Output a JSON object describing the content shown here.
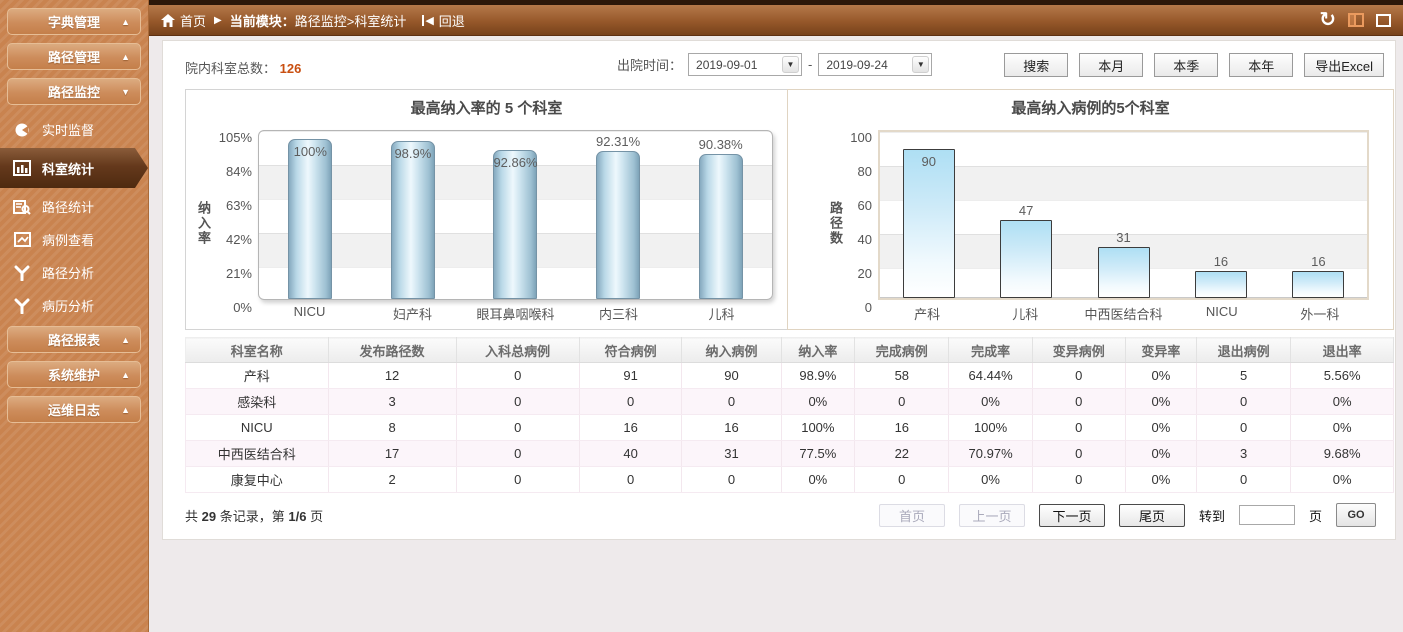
{
  "topbar": {
    "home_label": "首页",
    "module_label": "当前模块：",
    "module_path": "路径监控>科室统计",
    "back_label": "回退"
  },
  "sidebar": {
    "groups_top": [
      {
        "label": "字典管理",
        "arrow": "▲"
      },
      {
        "label": "路径管理",
        "arrow": "▲"
      }
    ],
    "monitor_group": {
      "label": "路径监控",
      "arrow": "▼"
    },
    "monitor_items": [
      {
        "label": "实时监督"
      },
      {
        "label": "科室统计"
      },
      {
        "label": "路径统计"
      },
      {
        "label": "病例查看"
      },
      {
        "label": "路径分析"
      },
      {
        "label": "病历分析"
      }
    ],
    "groups_bottom": [
      {
        "label": "路径报表",
        "arrow": "▲"
      },
      {
        "label": "系统维护",
        "arrow": "▲"
      },
      {
        "label": "运维日志",
        "arrow": "▲"
      }
    ]
  },
  "filter": {
    "total_label": "院内科室总数：",
    "total_value": "126",
    "date_label": "出院时间：",
    "date_from": "2019-09-01",
    "date_to": "2019-09-24",
    "date_separator": "-",
    "buttons": [
      "搜索",
      "本月",
      "本季",
      "本年",
      "导出Excel"
    ]
  },
  "chart_data": [
    {
      "type": "bar",
      "title": "最高纳入率的 5 个科室",
      "xlabel": "",
      "ylabel": "纳入率",
      "ylim": [
        0,
        105
      ],
      "yticks": [
        "105%",
        "84%",
        "63%",
        "42%",
        "21%",
        "0%"
      ],
      "categories": [
        "NICU",
        "妇产科",
        "眼耳鼻咽喉科",
        "内三科",
        "儿科"
      ],
      "values": [
        100,
        98.9,
        92.86,
        92.31,
        90.38
      ],
      "labels": [
        "100%",
        "98.9%",
        "92.86%",
        "92.31%",
        "90.38%"
      ],
      "label_inside": [
        true,
        true,
        true,
        false,
        false
      ],
      "grid": true,
      "legend": "none"
    },
    {
      "type": "bar",
      "title": "最高纳入病例的5个科室",
      "xlabel": "",
      "ylabel": "路径数",
      "ylim": [
        0,
        100
      ],
      "yticks": [
        "100",
        "80",
        "60",
        "40",
        "20",
        "0"
      ],
      "categories": [
        "产科",
        "儿科",
        "中西医结合科",
        "NICU",
        "外一科"
      ],
      "values": [
        90,
        47,
        31,
        16,
        16
      ],
      "labels": [
        "90",
        "47",
        "31",
        "16",
        "16"
      ],
      "label_inside": [
        true,
        false,
        false,
        false,
        false
      ],
      "grid": true,
      "legend": "none"
    }
  ],
  "table": {
    "headers": [
      "科室名称",
      "发布路径数",
      "入科总病例",
      "符合病例",
      "纳入病例",
      "纳入率",
      "完成病例",
      "完成率",
      "变异病例",
      "变异率",
      "退出病例",
      "退出率"
    ],
    "rows": [
      [
        "产科",
        "12",
        "0",
        "91",
        "90",
        "98.9%",
        "58",
        "64.44%",
        "0",
        "0%",
        "5",
        "5.56%"
      ],
      [
        "感染科",
        "3",
        "0",
        "0",
        "0",
        "0%",
        "0",
        "0%",
        "0",
        "0%",
        "0",
        "0%"
      ],
      [
        "NICU",
        "8",
        "0",
        "16",
        "16",
        "100%",
        "16",
        "100%",
        "0",
        "0%",
        "0",
        "0%"
      ],
      [
        "中西医结合科",
        "17",
        "0",
        "40",
        "31",
        "77.5%",
        "22",
        "70.97%",
        "0",
        "0%",
        "3",
        "9.68%"
      ],
      [
        "康复中心",
        "2",
        "0",
        "0",
        "0",
        "0%",
        "0",
        "0%",
        "0",
        "0%",
        "0",
        "0%"
      ]
    ]
  },
  "pagination": {
    "summary_prefix": "共",
    "record_count": "29",
    "summary_mid": "条记录，第",
    "page_info": "1/6",
    "summary_suffix": "页",
    "first": "首页",
    "prev": "上一页",
    "next": "下一页",
    "last": "尾页",
    "goto_label": "转到",
    "page_label": "页",
    "go": "GO"
  }
}
